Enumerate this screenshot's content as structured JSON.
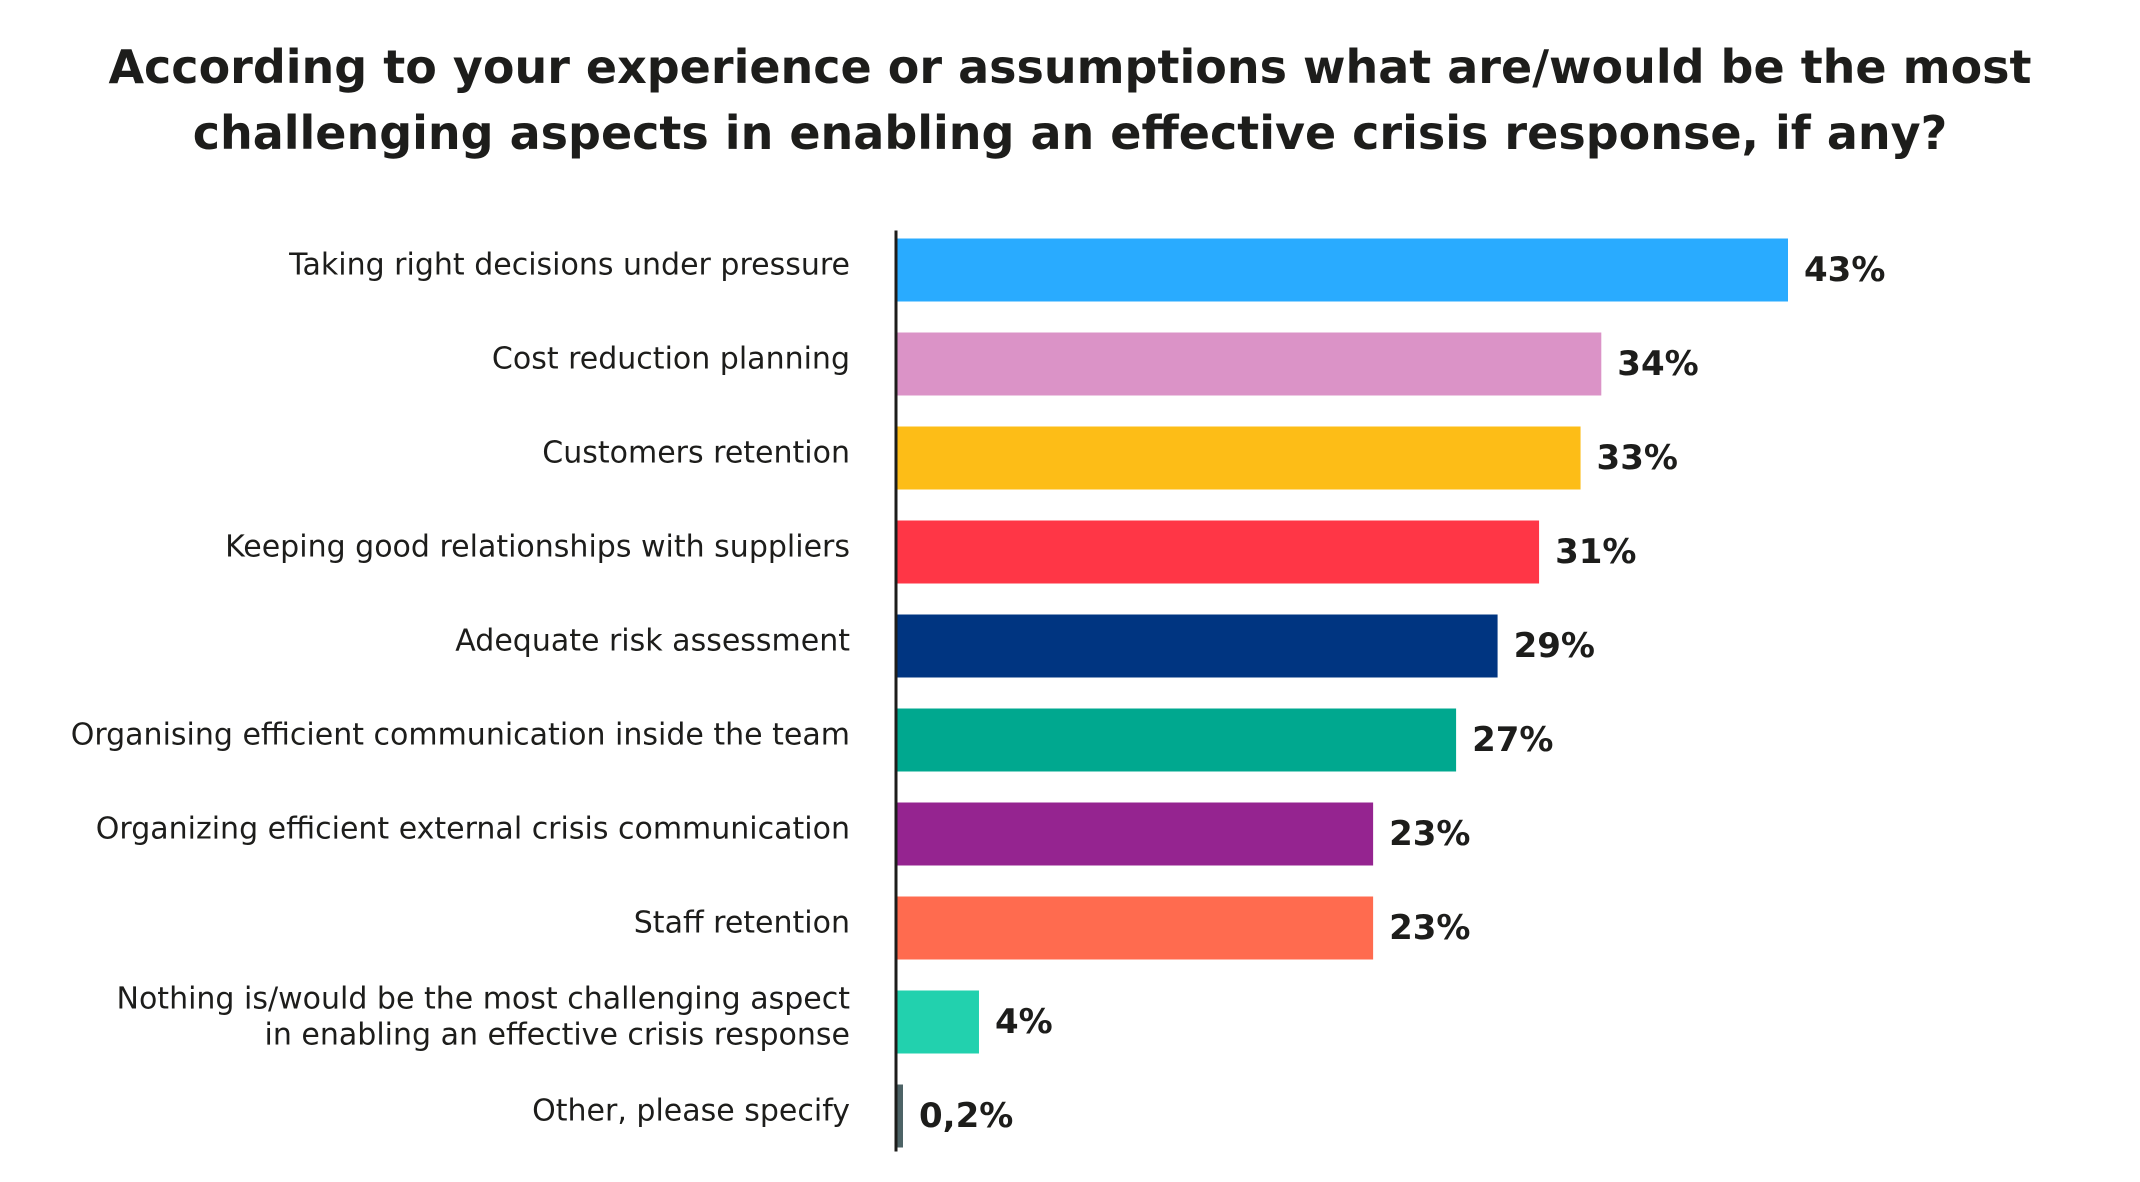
{
  "chart_data": {
    "type": "bar",
    "orientation": "horizontal",
    "title_lines": [
      "According to your experience or assumptions what are/would be the most",
      "challenging aspects in enabling an effective crisis response, if any?"
    ],
    "categories": [
      [
        "Taking right decisions under pressure"
      ],
      [
        "Cost reduction planning"
      ],
      [
        "Customers retention"
      ],
      [
        "Keeping good relationships with suppliers"
      ],
      [
        "Adequate risk assessment"
      ],
      [
        "Organising efficient communication inside the team"
      ],
      [
        "Organizing efficient external crisis communication"
      ],
      [
        "Staff retention"
      ],
      [
        "Nothing is/would be the most challenging aspect",
        "in enabling an effective crisis response"
      ],
      [
        "Other, please specify"
      ]
    ],
    "values": [
      43,
      34,
      33,
      31,
      29,
      27,
      23,
      23,
      4,
      0.2
    ],
    "value_labels": [
      "43%",
      "34%",
      "33%",
      "31%",
      "29%",
      "27%",
      "23%",
      "23%",
      "4%",
      "0,2%"
    ],
    "colors": [
      "#29abff",
      "#db93c7",
      "#fdbd17",
      "#ff3646",
      "#003581",
      "#00a88f",
      "#952490",
      "#ff6b4f",
      "#22d1ae",
      "#4d6366"
    ],
    "axis_color": "#1d1d1b",
    "xlim": [
      0,
      43
    ],
    "grid": false,
    "legend": "none",
    "xlabel": "",
    "ylabel": ""
  }
}
